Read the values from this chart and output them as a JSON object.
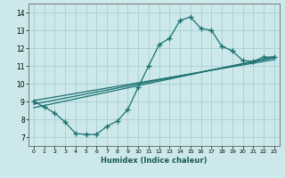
{
  "xlabel": "Humidex (Indice chaleur)",
  "xlim": [
    -0.5,
    23.5
  ],
  "ylim": [
    6.5,
    14.5
  ],
  "xticks": [
    0,
    1,
    2,
    3,
    4,
    5,
    6,
    7,
    8,
    9,
    10,
    11,
    12,
    13,
    14,
    15,
    16,
    17,
    18,
    19,
    20,
    21,
    22,
    23
  ],
  "yticks": [
    7,
    8,
    9,
    10,
    11,
    12,
    13,
    14
  ],
  "bg_color": "#cce8ea",
  "grid_color": "#a8d0d2",
  "line_color": "#1a7070",
  "curve_x": [
    0,
    1,
    2,
    3,
    4,
    5,
    6,
    7,
    8,
    9,
    10,
    11,
    12,
    13,
    14,
    15,
    16,
    17,
    18,
    19,
    20,
    21,
    22,
    23
  ],
  "curve_y": [
    9.0,
    8.7,
    8.35,
    7.85,
    7.2,
    7.15,
    7.15,
    7.6,
    7.9,
    8.55,
    9.8,
    11.0,
    12.2,
    12.55,
    13.55,
    13.75,
    13.1,
    13.0,
    12.1,
    11.85,
    11.3,
    11.25,
    11.5,
    11.5
  ],
  "line1_x": [
    0,
    23
  ],
  "line1_y": [
    8.85,
    11.45
  ],
  "line2_x": [
    0,
    23
  ],
  "line2_y": [
    9.05,
    11.35
  ],
  "line3_x": [
    0,
    23
  ],
  "line3_y": [
    8.65,
    11.5
  ]
}
